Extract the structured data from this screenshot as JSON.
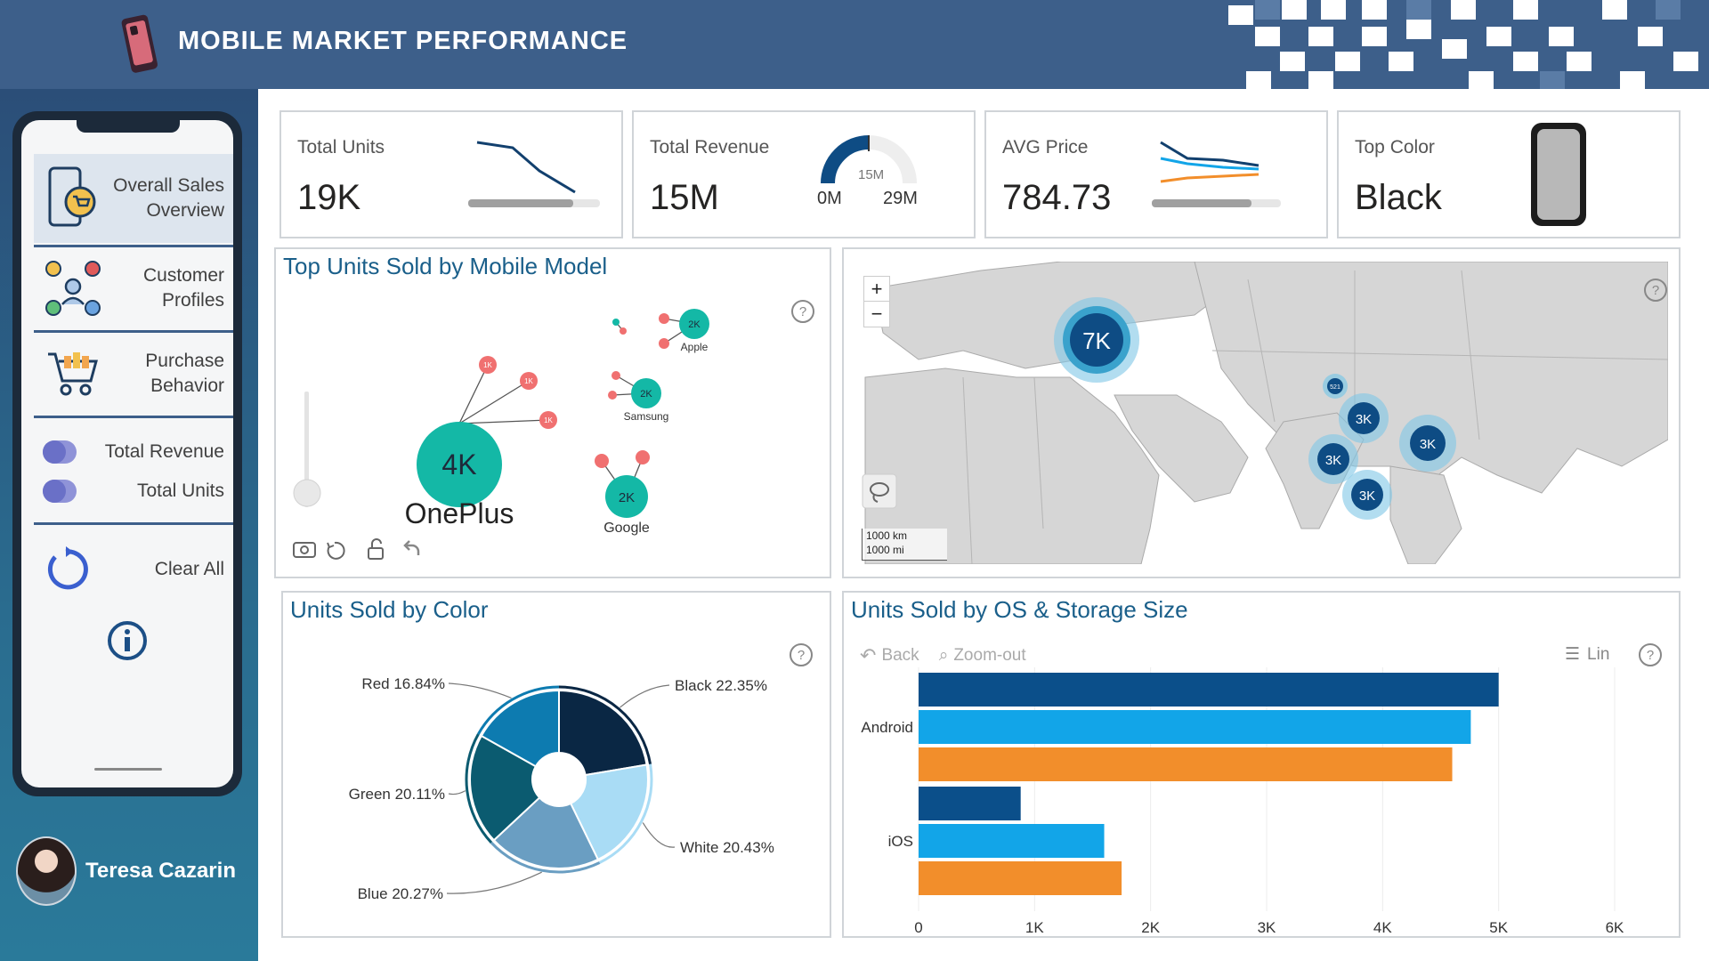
{
  "header": {
    "title": "MOBILE MARKET PERFORMANCE"
  },
  "sidebar": {
    "nav": [
      {
        "label_1": "Overall Sales",
        "label_2": "Overview"
      },
      {
        "label_1": "Customer",
        "label_2": "Profiles"
      },
      {
        "label_1": "Purchase",
        "label_2": "Behavior"
      }
    ],
    "toggles": [
      {
        "label": "Total Revenue"
      },
      {
        "label": "Total Units"
      }
    ],
    "clear_label": "Clear All",
    "user_name": "Teresa Cazarin"
  },
  "kpis": {
    "total_units": {
      "title": "Total Units",
      "value": "19K"
    },
    "total_revenue": {
      "title": "Total Revenue",
      "value": "15M",
      "gauge_min": "0M",
      "gauge_max": "29M",
      "gauge_target": "15M"
    },
    "avg_price": {
      "title": "AVG Price",
      "value": "784.73"
    },
    "top_color": {
      "title": "Top Color",
      "value": "Black"
    }
  },
  "model_chart": {
    "title": "Top Units Sold by Mobile Model",
    "main": {
      "label": "OnePlus",
      "value_label": "4K"
    },
    "nodes": [
      {
        "label": "Apple",
        "value_label": "2K"
      },
      {
        "label": "Samsung",
        "value_label": "2K"
      },
      {
        "label": "Google",
        "value_label": "2K"
      }
    ],
    "leaf_labels": [
      "1K",
      "1K",
      "1K"
    ]
  },
  "map_chart": {
    "clusters": [
      "7K",
      "3K",
      "3K",
      "3K",
      "3K",
      "521"
    ],
    "scale_km": "1000 km",
    "scale_mi": "1000 mi",
    "zoom_in": "+",
    "zoom_out": "−"
  },
  "os_toolbar": {
    "back": "Back",
    "zoom_out": "Zoom-out",
    "scale": "Lin"
  },
  "chart_data": [
    {
      "type": "pie",
      "title": "Units Sold by Color",
      "categories": [
        "Black",
        "White",
        "Blue",
        "Green",
        "Red"
      ],
      "values": [
        22.35,
        20.43,
        20.27,
        20.11,
        16.84
      ],
      "labels": [
        "Black 22.35%",
        "White 20.43%",
        "Blue 20.27%",
        "Green 20.11%",
        "Red 16.84%"
      ],
      "colors": [
        "#0a2744",
        "#a9dcf5",
        "#6a9ec2",
        "#0b5b70",
        "#0d7bb0"
      ],
      "donut": true
    },
    {
      "type": "bar",
      "orientation": "horizontal",
      "title": "Units Sold by OS & Storage Size",
      "categories": [
        "Android",
        "iOS"
      ],
      "series": [
        {
          "values": [
            5000,
            880
          ],
          "color": "#0b4f8a"
        },
        {
          "values": [
            4760,
            1600
          ],
          "color": "#12a5e8"
        },
        {
          "values": [
            4600,
            1750
          ],
          "color": "#f28e2b"
        }
      ],
      "xlim": [
        0,
        6000
      ],
      "ticks": [
        "0",
        "1K",
        "2K",
        "3K",
        "4K",
        "5K",
        "6K"
      ],
      "grid": true
    }
  ]
}
